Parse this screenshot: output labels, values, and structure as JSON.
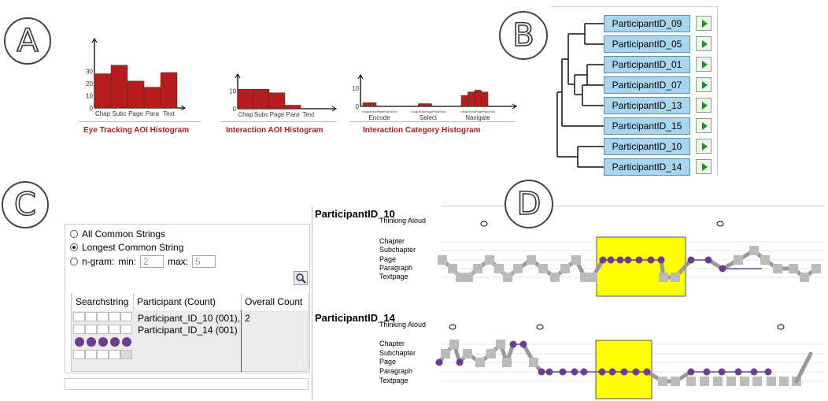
{
  "labels": {
    "a": "A",
    "b": "B",
    "c": "C",
    "d": "D"
  },
  "panel_a": {
    "histograms": [
      {
        "title": "Eye Tracking AOI Histogram",
        "y_ticks": [
          "30",
          "20",
          "10",
          "0"
        ],
        "categories": [
          "Chap",
          "Subc",
          "Page",
          "Para",
          "Text"
        ],
        "values": [
          28,
          35,
          22,
          17,
          29
        ],
        "ylim": [
          0,
          40
        ]
      },
      {
        "title": "Interaction AOI Histogram",
        "y_ticks": [
          "10",
          "0"
        ],
        "categories": [
          "Chap",
          "Subc",
          "Page",
          "Para",
          "Text"
        ],
        "values": [
          11,
          11,
          9,
          2,
          0
        ],
        "ylim": [
          0,
          16
        ]
      },
      {
        "title": "Interaction Category Histogram",
        "y_ticks": [
          "10",
          "0"
        ],
        "groups": [
          {
            "name": "Encode",
            "tick_text": "ChapSubcPageParaText",
            "values": [
              2,
              2,
              0,
              0,
              0
            ]
          },
          {
            "name": "Select",
            "tick_text": "ChapSubcPageParaText",
            "values": [
              0,
              1.5,
              1.5,
              0,
              0
            ]
          },
          {
            "name": "Navigate",
            "tick_text": "ChapSubcPageParaText",
            "values": [
              6,
              8,
              9,
              8,
              0
            ]
          }
        ],
        "ylim": [
          0,
          14
        ]
      }
    ],
    "bar_color": "#b71c1c"
  },
  "panel_b": {
    "participants": [
      "ParticipantID_09",
      "ParticipantID_05",
      "ParticipantID_01",
      "ParticipantID_07",
      "ParticipantID_13",
      "ParticipantID_15",
      "ParticipantID_10",
      "ParticipantID_14"
    ],
    "box_color": "#a9d5ee",
    "play_color": "#1e8c2c"
  },
  "panel_c": {
    "options": [
      {
        "label": "All Common Strings",
        "selected": false
      },
      {
        "label": "Longest Common String",
        "selected": true
      }
    ],
    "ngram": {
      "label": "n-gram:",
      "min_label": "min:",
      "min_value": "2",
      "max_label": "max:",
      "max_value": "5"
    },
    "table": {
      "headers": [
        "Searchstring",
        "Participant (Count)",
        "Overall Count"
      ],
      "participant_lines": [
        "Participant_ID_10 (001),",
        "Participant_ID_14 (001)"
      ],
      "overall_count": "2"
    },
    "dot_color": "#6b3d8f"
  },
  "panel_d": {
    "rows": [
      "Thinking Aloud",
      "Chapter",
      "Subchapter",
      "Page",
      "Paragraph",
      "Textpage"
    ],
    "timelines": [
      {
        "title": "ParticipantID_10"
      },
      {
        "title": "ParticipantID_14"
      }
    ],
    "highlight_color": "#ffff00",
    "purple": "#6b3d8f",
    "gray": "#bbbbbb"
  }
}
